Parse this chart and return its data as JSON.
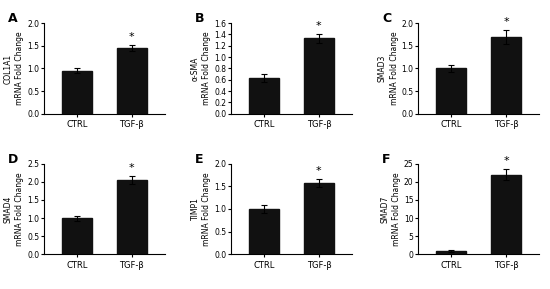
{
  "panels": [
    {
      "label": "A",
      "ylabel_line1": "COL1A1",
      "ylabel_line2": "mRNA Fold Change",
      "ctrl_val": 0.95,
      "tgfb_val": 1.45,
      "ctrl_err": 0.05,
      "tgfb_err": 0.07,
      "ylim": [
        0,
        2.0
      ],
      "yticks": [
        0,
        0.5,
        1.0,
        1.5,
        2.0
      ]
    },
    {
      "label": "B",
      "ylabel_line1": "α-SMA",
      "ylabel_line2": "mRNA Fold Change",
      "ctrl_val": 0.63,
      "tgfb_val": 1.33,
      "ctrl_err": 0.07,
      "tgfb_err": 0.08,
      "ylim": [
        0,
        1.6
      ],
      "yticks": [
        0,
        0.2,
        0.4,
        0.6,
        0.8,
        1.0,
        1.2,
        1.4,
        1.6
      ]
    },
    {
      "label": "C",
      "ylabel_line1": "SMAD3",
      "ylabel_line2": "mRNA Fold Change",
      "ctrl_val": 1.0,
      "tgfb_val": 1.7,
      "ctrl_err": 0.08,
      "tgfb_err": 0.15,
      "ylim": [
        0,
        2.0
      ],
      "yticks": [
        0,
        0.5,
        1.0,
        1.5,
        2.0
      ]
    },
    {
      "label": "D",
      "ylabel_line1": "SMAD4",
      "ylabel_line2": "mRNA Fold Change",
      "ctrl_val": 1.0,
      "tgfb_val": 2.05,
      "ctrl_err": 0.07,
      "tgfb_err": 0.12,
      "ylim": [
        0,
        2.5
      ],
      "yticks": [
        0,
        0.5,
        1.0,
        1.5,
        2.0,
        2.5
      ]
    },
    {
      "label": "E",
      "ylabel_line1": "TIMP1",
      "ylabel_line2": "mRNA Fold Change",
      "ctrl_val": 1.0,
      "tgfb_val": 1.57,
      "ctrl_err": 0.08,
      "tgfb_err": 0.09,
      "ylim": [
        0,
        2.0
      ],
      "yticks": [
        0,
        0.5,
        1.0,
        1.5,
        2.0
      ]
    },
    {
      "label": "F",
      "ylabel_line1": "SMAD7",
      "ylabel_line2": "mRNA Fold Change",
      "ctrl_val": 1.0,
      "tgfb_val": 22.0,
      "ctrl_err": 0.3,
      "tgfb_err": 1.5,
      "ylim": [
        0,
        25
      ],
      "yticks": [
        0,
        5,
        10,
        15,
        20,
        25
      ]
    }
  ],
  "bar_color": "#111111",
  "bar_width": 0.55,
  "xtick_labels": [
    "CTRL",
    "TGF-β"
  ],
  "asterisk": "*",
  "background": "#ffffff"
}
